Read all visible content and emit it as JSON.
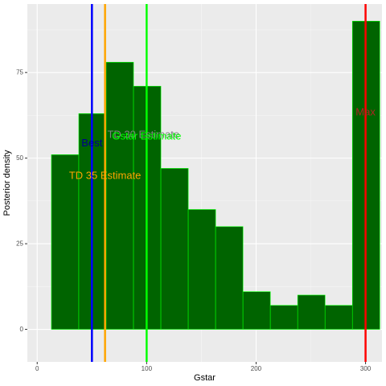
{
  "chart_data": {
    "type": "bar",
    "subtype": "histogram",
    "xlabel": "Gstar",
    "ylabel": "Posterior density",
    "xlim": [
      -9,
      315
    ],
    "ylim": [
      -9.5,
      95
    ],
    "x_ticks": [
      0,
      100,
      200,
      300
    ],
    "y_ticks": [
      0,
      25,
      50,
      75
    ],
    "x_tick_labels": [
      "0",
      "100",
      "200",
      "300"
    ],
    "y_tick_labels": [
      "0",
      "25",
      "50",
      "75"
    ],
    "grid": true,
    "bar_fill": "#006400",
    "bar_outline": "#00ff00",
    "bins": [
      {
        "x_start": 13,
        "x_end": 38,
        "value": 51
      },
      {
        "x_start": 38,
        "x_end": 63,
        "value": 63
      },
      {
        "x_start": 63,
        "x_end": 88,
        "value": 78
      },
      {
        "x_start": 88,
        "x_end": 113,
        "value": 71
      },
      {
        "x_start": 113,
        "x_end": 138,
        "value": 47
      },
      {
        "x_start": 138,
        "x_end": 163,
        "value": 35
      },
      {
        "x_start": 163,
        "x_end": 188,
        "value": 30
      },
      {
        "x_start": 188,
        "x_end": 213,
        "value": 11
      },
      {
        "x_start": 213,
        "x_end": 238,
        "value": 7
      },
      {
        "x_start": 238,
        "x_end": 263,
        "value": 10
      },
      {
        "x_start": 263,
        "x_end": 288,
        "value": 7
      },
      {
        "x_start": 288,
        "x_end": 313,
        "value": 90
      }
    ],
    "vlines": [
      {
        "label": "Best",
        "x": 50,
        "color": "#0000ff",
        "label_color": "#00008b",
        "label_y": 54.5
      },
      {
        "label": "TD 35 Estimate",
        "x": 62,
        "color": "#ffa500",
        "label_color": "#ffa500",
        "label_y": 45
      },
      {
        "label": "Gstar Estimate",
        "x": 100,
        "color": "#00ff00",
        "label_color": "#00ff00",
        "label_y": 56.5
      },
      {
        "label": "Max",
        "x": 300,
        "color": "#ff0000",
        "label_color": "#b22222",
        "label_y": 63.5
      }
    ],
    "annotations": [
      {
        "text": "TD 30 Estimate",
        "x": 97,
        "y": 57,
        "color": "#808080"
      }
    ]
  }
}
